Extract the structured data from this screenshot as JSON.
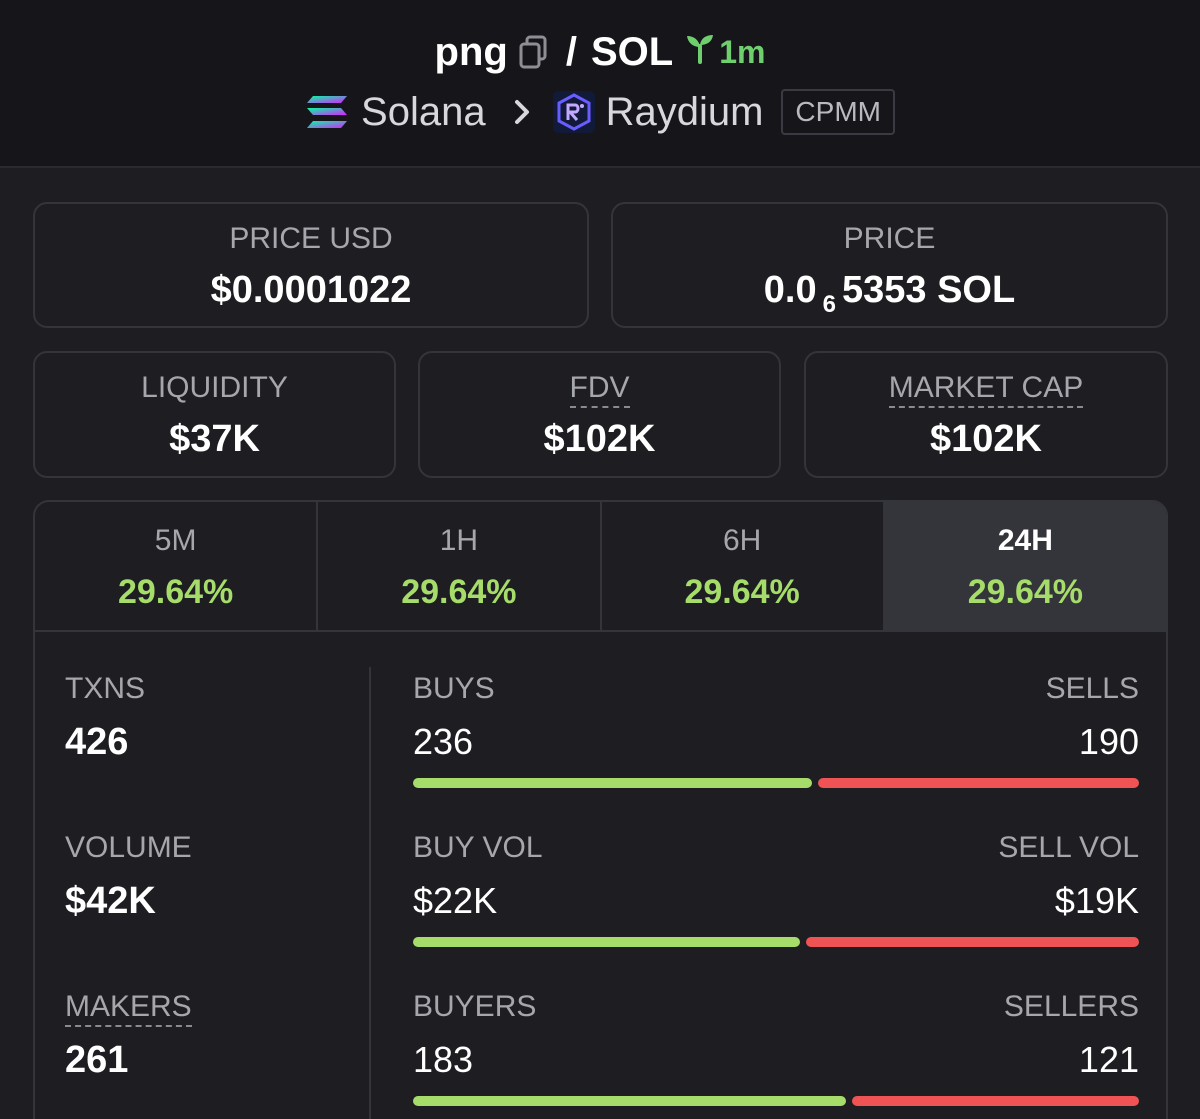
{
  "header": {
    "token": "png",
    "separator": "/",
    "quote": "SOL",
    "age": "1m",
    "chain": "Solana",
    "dex": "Raydium",
    "pool_type": "CPMM"
  },
  "price_usd": {
    "label": "PRICE USD",
    "value": "$0.0001022"
  },
  "price": {
    "label": "PRICE",
    "prefix": "0.0",
    "zeros": "6",
    "digits": "5353",
    "unit": "SOL"
  },
  "liquidity": {
    "label": "LIQUIDITY",
    "value": "$37K"
  },
  "fdv": {
    "label": "FDV",
    "value": "$102K"
  },
  "market_cap": {
    "label": "MARKET CAP",
    "value": "$102K"
  },
  "tabs": [
    {
      "label": "5M",
      "value": "29.64%"
    },
    {
      "label": "1H",
      "value": "29.64%"
    },
    {
      "label": "6H",
      "value": "29.64%"
    },
    {
      "label": "24H",
      "value": "29.64%"
    }
  ],
  "active_tab": "24H",
  "metrics": {
    "txns": {
      "label": "TXNS",
      "value": "426"
    },
    "volume": {
      "label": "VOLUME",
      "value": "$42K"
    },
    "makers": {
      "label": "MAKERS",
      "value": "261"
    }
  },
  "rows": {
    "txns": {
      "left_label": "BUYS",
      "right_label": "SELLS",
      "left_value": "236",
      "right_value": "190",
      "buy_fraction": 0.554
    },
    "volume": {
      "left_label": "BUY VOL",
      "right_label": "SELL VOL",
      "left_value": "$22K",
      "right_value": "$19K",
      "buy_fraction": 0.537
    },
    "makers": {
      "left_label": "BUYERS",
      "right_label": "SELLERS",
      "left_value": "183",
      "right_value": "121",
      "buy_fraction": 0.602
    }
  },
  "colors": {
    "background": "#1d1d22",
    "header_bg": "#16161a",
    "positive": "#a6dc6a",
    "negative": "#f05353",
    "age_green": "#6fcf6f"
  }
}
